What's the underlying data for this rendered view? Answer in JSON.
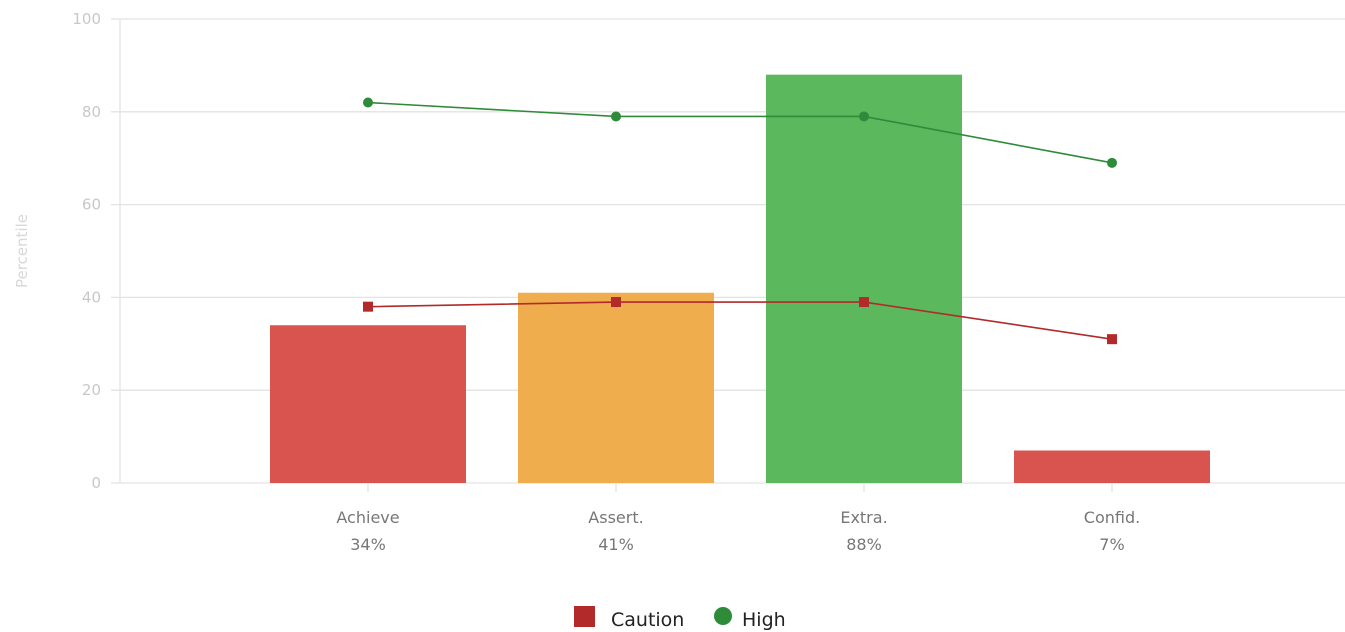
{
  "chart_data": {
    "type": "bar",
    "ylabel": "Percentile",
    "ylim": [
      0,
      100
    ],
    "yticks": [
      0,
      20,
      40,
      60,
      80,
      100
    ],
    "grid": true,
    "legend_position": "bottom-center",
    "categories": [
      "Achieve",
      "Assert.",
      "Extra.",
      "Confid."
    ],
    "category_values_text": [
      "34%",
      "41%",
      "88%",
      "7%"
    ],
    "bars": {
      "values": [
        34,
        41,
        88,
        7
      ],
      "colors": [
        "#d9534f",
        "#f0ad4e",
        "#5cb85c",
        "#d9534f"
      ]
    },
    "series": [
      {
        "name": "Caution",
        "type": "line",
        "marker": "square",
        "color": "#b22a2a",
        "values": [
          38,
          39,
          39,
          31
        ]
      },
      {
        "name": "High",
        "type": "line",
        "marker": "circle",
        "color": "#2e8b3a",
        "values": [
          82,
          79,
          79,
          69
        ]
      }
    ]
  }
}
